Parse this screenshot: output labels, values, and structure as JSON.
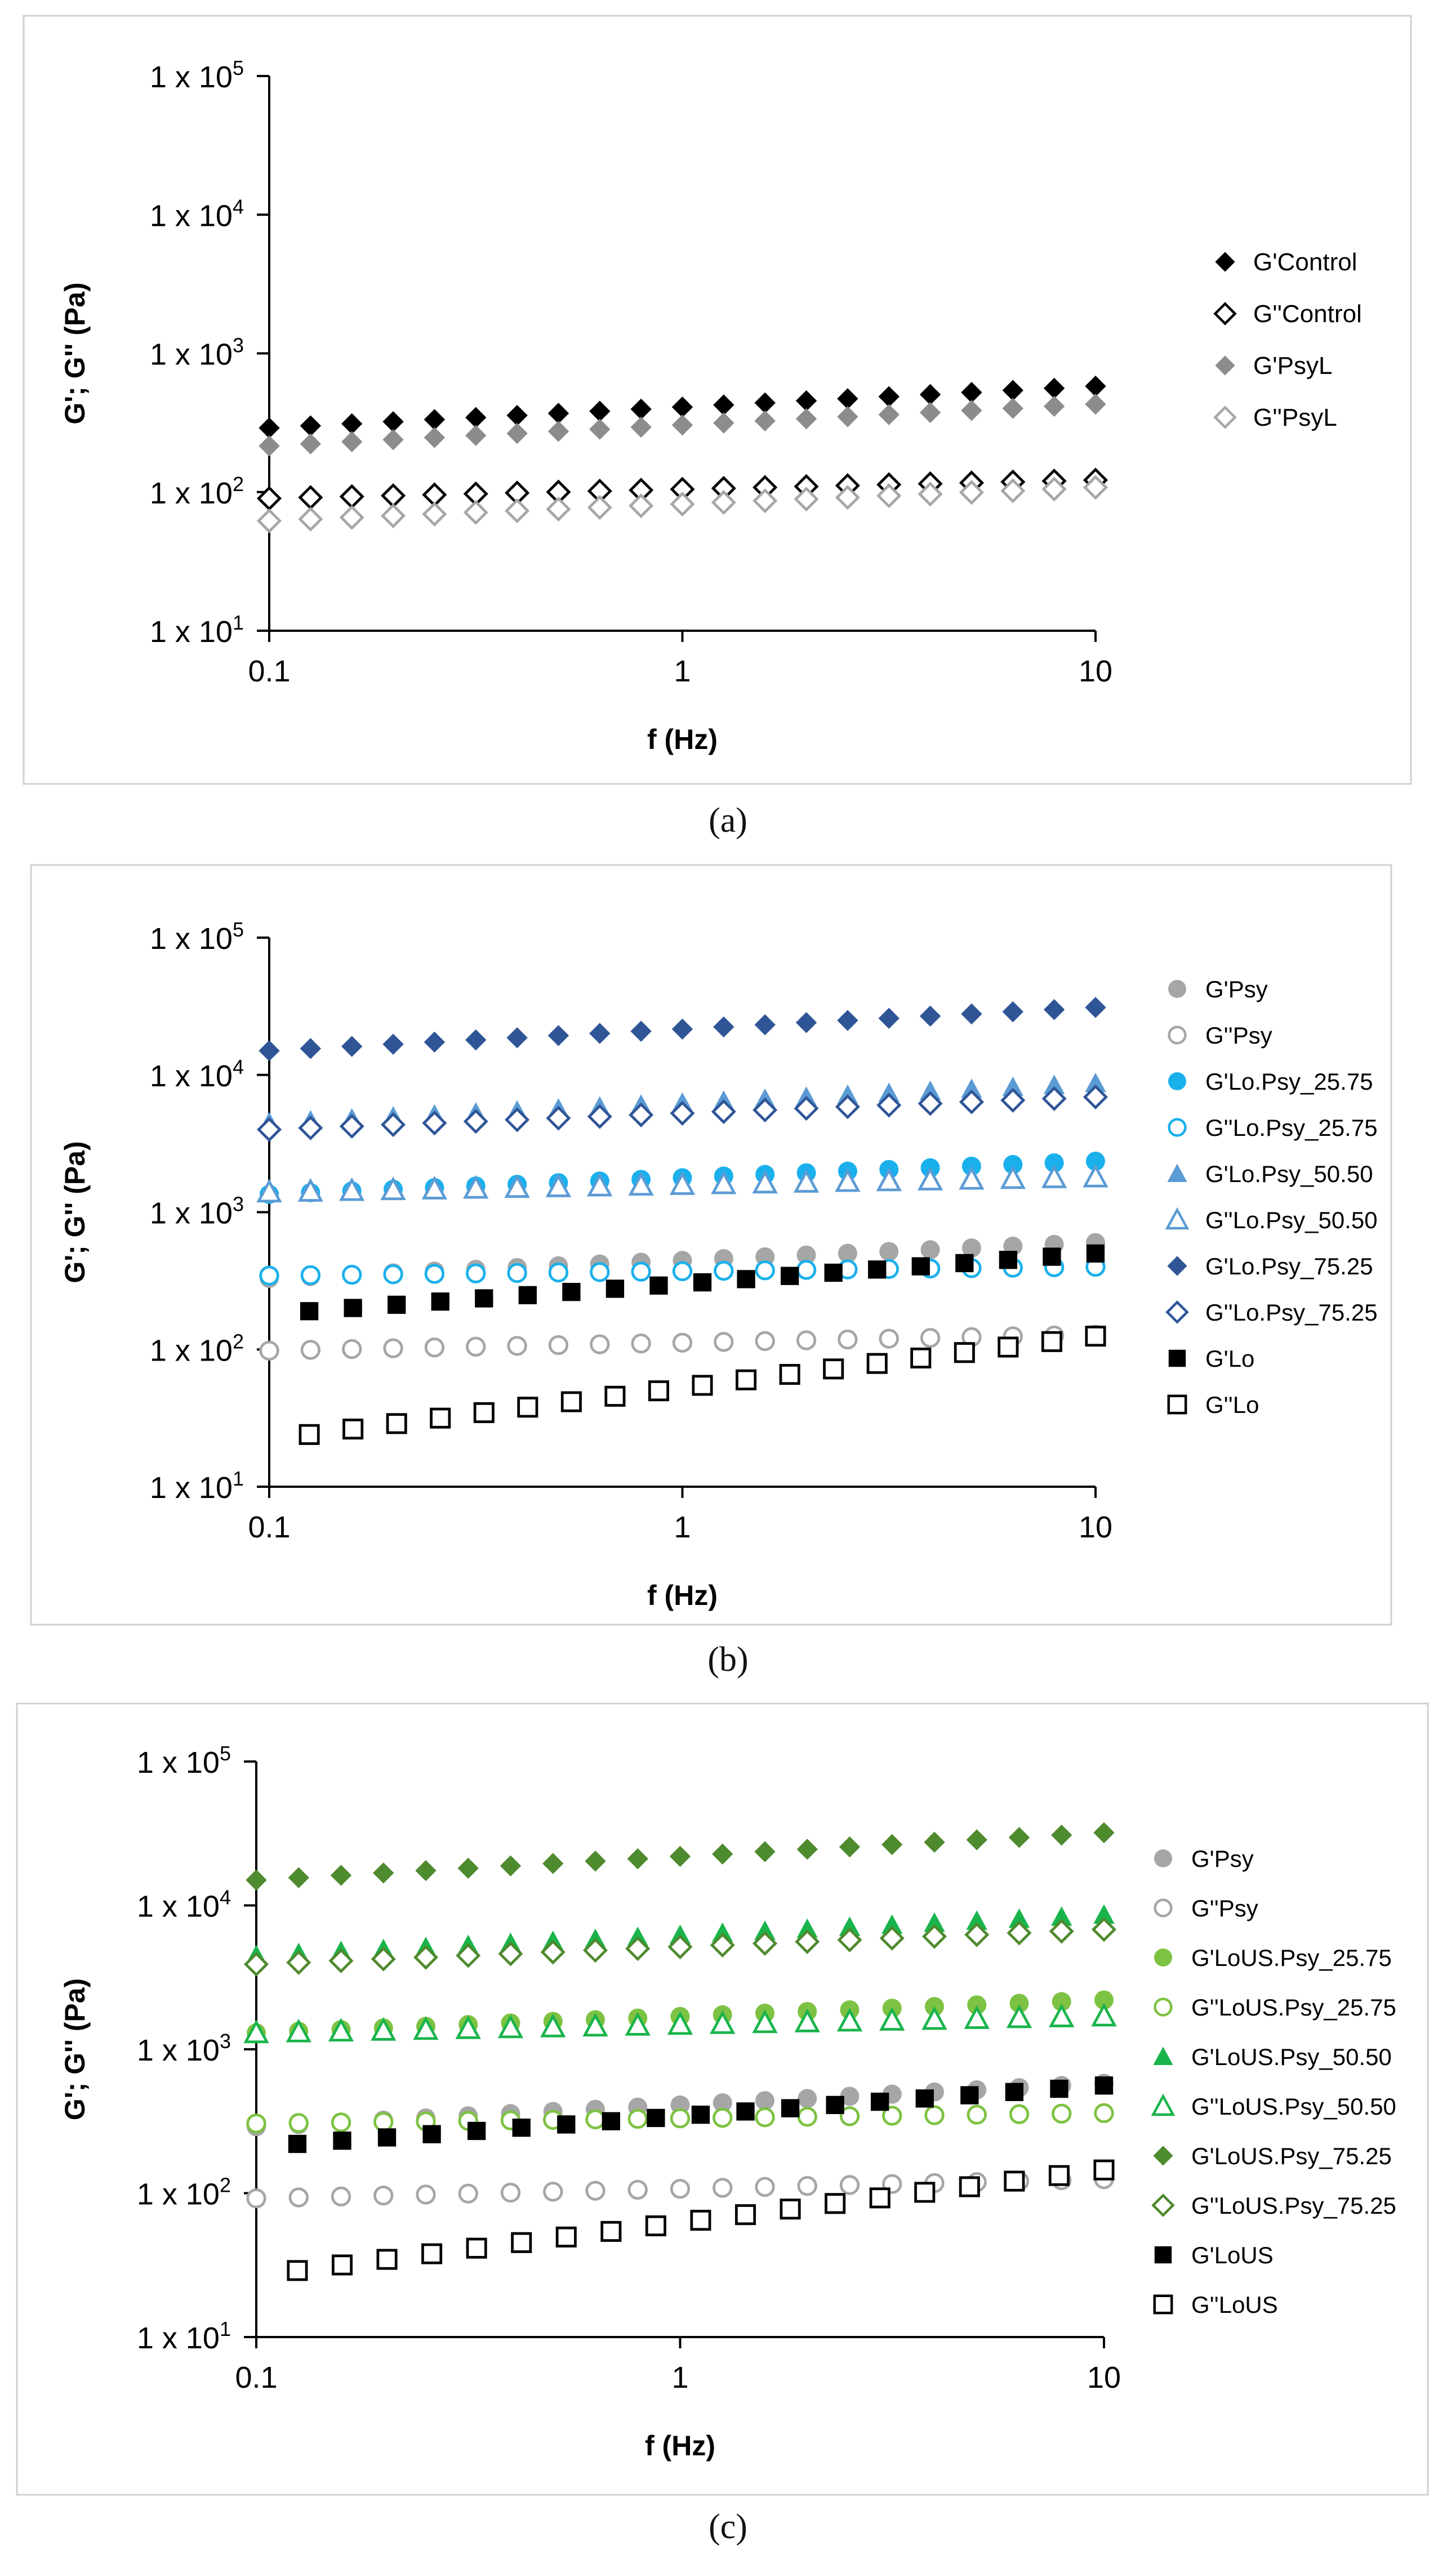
{
  "chart_data": [
    {
      "type": "scatter",
      "panel_label": "(a)",
      "xlabel": "f (Hz)",
      "ylabel": "G'; G'' (Pa)",
      "x_scale": "log",
      "y_scale": "log",
      "xlim": [
        0.1,
        10
      ],
      "ylim": [
        10,
        100000
      ],
      "x_ticks": [
        "0.1",
        "1",
        "10"
      ],
      "y_ticks": [
        {
          "base": "1 x 10",
          "exp": "1"
        },
        {
          "base": "1 x 10",
          "exp": "2"
        },
        {
          "base": "1 x 10",
          "exp": "3"
        },
        {
          "base": "1 x 10",
          "exp": "4"
        },
        {
          "base": "1 x 10",
          "exp": "5"
        }
      ],
      "grid": false,
      "legend_position": "right",
      "series": [
        {
          "name": "G'Control",
          "marker": "diamond",
          "fill": "filled",
          "color": "#000000",
          "y_start": 290,
          "y_end": 580
        },
        {
          "name": "G''Control",
          "marker": "diamond",
          "fill": "open",
          "color": "#000000",
          "y_start": 90,
          "y_end": 122
        },
        {
          "name": "G'PsyL",
          "marker": "diamond",
          "fill": "filled",
          "color": "#8c8c8c",
          "y_start": 215,
          "y_end": 430
        },
        {
          "name": "G''PsyL",
          "marker": "diamond",
          "fill": "open",
          "color": "#a6a6a6",
          "y_start": 62,
          "y_end": 108
        }
      ]
    },
    {
      "type": "scatter",
      "panel_label": "(b)",
      "xlabel": "f (Hz)",
      "ylabel": "G'; G'' (Pa)",
      "x_scale": "log",
      "y_scale": "log",
      "xlim": [
        0.1,
        10
      ],
      "ylim": [
        10,
        100000
      ],
      "x_ticks": [
        "0.1",
        "1",
        "10"
      ],
      "y_ticks": [
        {
          "base": "1 x 10",
          "exp": "1"
        },
        {
          "base": "1 x 10",
          "exp": "2"
        },
        {
          "base": "1 x 10",
          "exp": "3"
        },
        {
          "base": "1 x 10",
          "exp": "4"
        },
        {
          "base": "1 x 10",
          "exp": "5"
        }
      ],
      "grid": false,
      "legend_position": "right",
      "series": [
        {
          "name": "G'Psy",
          "marker": "circle",
          "fill": "filled",
          "color": "#a6a6a6",
          "y_start": 330,
          "y_end": 600
        },
        {
          "name": "G''Psy",
          "marker": "circle",
          "fill": "open",
          "color": "#a6a6a6",
          "y_start": 98,
          "y_end": 128
        },
        {
          "name": "G'Lo.Psy_25.75",
          "marker": "circle",
          "fill": "filled",
          "color": "#1ab0ec",
          "y_start": 1350,
          "y_end": 2350
        },
        {
          "name": "G''Lo.Psy_25.75",
          "marker": "circle",
          "fill": "open",
          "color": "#1ab0ec",
          "y_start": 345,
          "y_end": 400
        },
        {
          "name": "G'Lo.Psy_50.50",
          "marker": "triangle",
          "fill": "filled",
          "color": "#5b9bd5",
          "y_start": 4500,
          "y_end": 8700
        },
        {
          "name": "G''Lo.Psy_50.50",
          "marker": "triangle",
          "fill": "open",
          "color": "#5b9bd5",
          "y_start": 1400,
          "y_end": 1800
        },
        {
          "name": "G'Lo.Psy_75.25",
          "marker": "diamond",
          "fill": "filled",
          "color": "#2f5597",
          "y_start": 15000,
          "y_end": 31000
        },
        {
          "name": "G''Lo.Psy_75.25",
          "marker": "diamond",
          "fill": "open",
          "color": "#2f5597",
          "y_start": 4000,
          "y_end": 6900
        },
        {
          "name": "G'Lo",
          "marker": "square",
          "fill": "filled",
          "color": "#000000",
          "x_start": 0.125,
          "y_start": 190,
          "y_end": 500
        },
        {
          "name": "G''Lo",
          "marker": "square",
          "fill": "open",
          "color": "#000000",
          "x_start": 0.125,
          "y_start": 24,
          "y_end": 125
        }
      ]
    },
    {
      "type": "scatter",
      "panel_label": "(c)",
      "xlabel": "f (Hz)",
      "ylabel": "G'; G'' (Pa)",
      "x_scale": "log",
      "y_scale": "log",
      "xlim": [
        0.1,
        10
      ],
      "ylim": [
        10,
        100000
      ],
      "x_ticks": [
        "0.1",
        "1",
        "10"
      ],
      "y_ticks": [
        {
          "base": "1 x 10",
          "exp": "1"
        },
        {
          "base": "1 x 10",
          "exp": "2"
        },
        {
          "base": "1 x 10",
          "exp": "3"
        },
        {
          "base": "1 x 10",
          "exp": "4"
        },
        {
          "base": "1 x 10",
          "exp": "5"
        }
      ],
      "grid": false,
      "legend_position": "right",
      "series": [
        {
          "name": "G'Psy",
          "marker": "circle",
          "fill": "filled",
          "color": "#a6a6a6",
          "y_start": 290,
          "y_end": 580
        },
        {
          "name": "G''Psy",
          "marker": "circle",
          "fill": "open",
          "color": "#a6a6a6",
          "y_start": 92,
          "y_end": 125
        },
        {
          "name": "G'LoUS.Psy_25.75",
          "marker": "circle",
          "fill": "filled",
          "color": "#7dc242",
          "y_start": 1300,
          "y_end": 2200
        },
        {
          "name": "G''LoUS.Psy_25.75",
          "marker": "circle",
          "fill": "open",
          "color": "#7dc242",
          "y_start": 305,
          "y_end": 360
        },
        {
          "name": "G'LoUS.Psy_50.50",
          "marker": "triangle",
          "fill": "filled",
          "color": "#19b44b",
          "y_start": 4500,
          "y_end": 8600
        },
        {
          "name": "G''LoUS.Psy_50.50",
          "marker": "triangle",
          "fill": "open",
          "color": "#19b44b",
          "y_start": 1300,
          "y_end": 1700
        },
        {
          "name": "G'LoUS.Psy_75.25",
          "marker": "diamond",
          "fill": "filled",
          "color": "#4e8a2e",
          "y_start": 15000,
          "y_end": 32000
        },
        {
          "name": "G''LoUS.Psy_75.25",
          "marker": "diamond",
          "fill": "open",
          "color": "#4e8a2e",
          "y_start": 3900,
          "y_end": 6800
        },
        {
          "name": "G'LoUS",
          "marker": "square",
          "fill": "filled",
          "color": "#000000",
          "x_start": 0.125,
          "y_start": 220,
          "y_end": 560
        },
        {
          "name": "G''LoUS",
          "marker": "square",
          "fill": "open",
          "color": "#000000",
          "x_start": 0.125,
          "y_start": 29,
          "y_end": 145
        }
      ]
    }
  ],
  "captions": {
    "a": "(a)",
    "b": "(b)",
    "c": "(c)"
  }
}
